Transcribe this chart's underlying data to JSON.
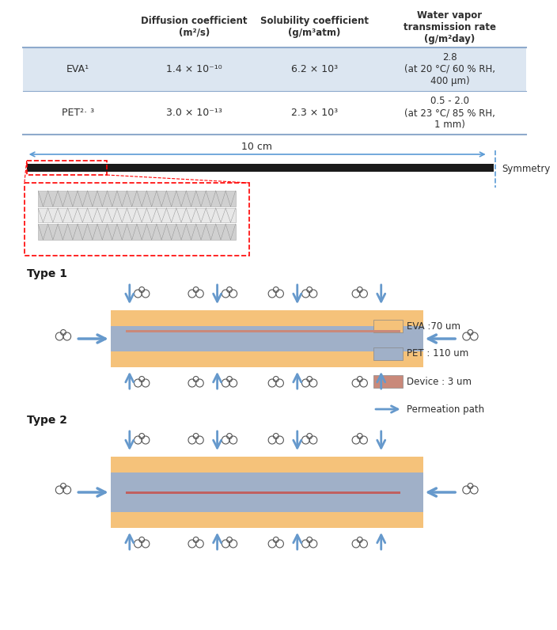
{
  "table": {
    "headers": [
      "",
      "Diffusion coefficient\n(m²/s)",
      "Solubility coefficient\n(g/m³atm)",
      "Water vapor\ntransmission rate\n(g/m²day)"
    ],
    "rows": [
      {
        "label": "EVA¹",
        "diffusion": "1.4 × 10⁻¹⁰",
        "solubility": "6.2 × 10³",
        "wvtr": "2.8\n(at 20 °C/ 60 % RH,\n400 μm)",
        "bg": "#dce6f1"
      },
      {
        "label": "PET²· ³",
        "diffusion": "3.0 × 10⁻¹³",
        "solubility": "2.3 × 10³",
        "wvtr": "0.5 - 2.0\n(at 23 °C/ 85 % RH,\n1 mm)",
        "bg": "#ffffff"
      }
    ]
  },
  "eva_color": "#f5c27a",
  "pet_color": "#a0b0c8",
  "device_color_type1": "#c9897a",
  "device_color_type2": "#c06060",
  "arrow_color": "#6699cc",
  "symmetry_color": "#5b9bd5",
  "red_dashed_color": "#ff0000",
  "black_line_color": "#1a1a1a",
  "legend_items": [
    {
      "label": "EVA :70 um",
      "color": "#f5c27a"
    },
    {
      "label": "PET : 110 um",
      "color": "#a0b0c8"
    },
    {
      "label": "Device : 3 um",
      "color": "#c9897a"
    },
    {
      "label": "Permeation path",
      "color": "#6699cc"
    }
  ]
}
